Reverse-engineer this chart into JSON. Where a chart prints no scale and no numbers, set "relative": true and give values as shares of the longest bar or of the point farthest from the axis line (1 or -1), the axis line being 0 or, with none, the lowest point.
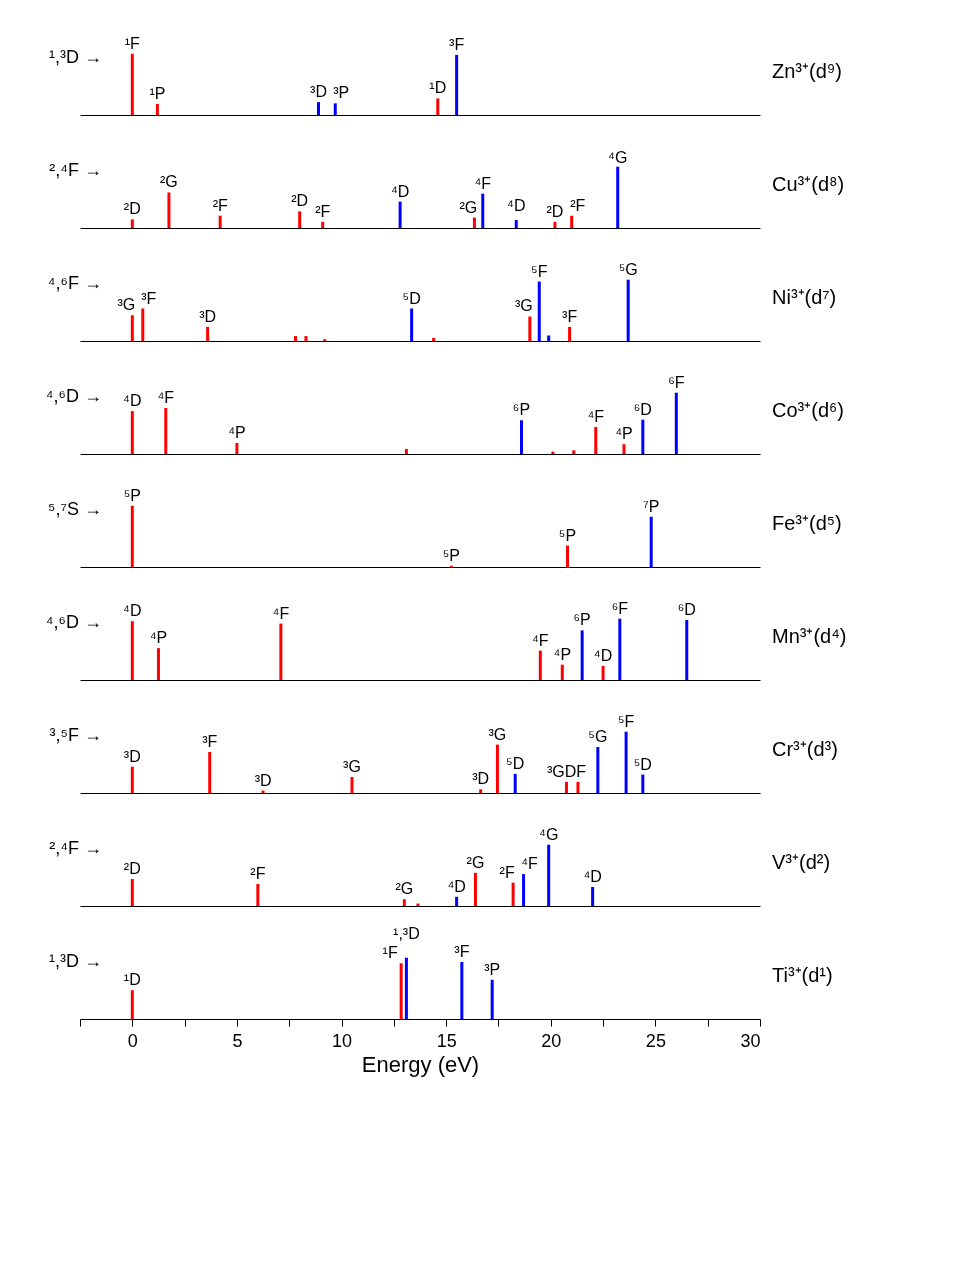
{
  "chart_data": [
    {
      "type": "bar",
      "relative": true,
      "xlim": [
        -2.5,
        30
      ],
      "tick_labels": false,
      "annotations": [
        "¹,³D →",
        "Zn³⁺(d⁹)",
        {
          "text": "¹F",
          "x": 0,
          "y": 1.0
        },
        {
          "text": "¹P",
          "x": 1.2,
          "y": 0.18
        },
        {
          "text": "³D",
          "x": 8.9,
          "y": 0.21
        },
        {
          "text": "³P",
          "x": 9.7,
          "y": 0.19
        },
        {
          "text": "¹D",
          "x": 14.6,
          "y": 0.27
        },
        {
          "text": "³F",
          "x": 15.5,
          "y": 0.98
        }
      ],
      "series": [
        {
          "color": "#ff0000",
          "x": [
            0,
            1.2,
            14.6
          ],
          "values": [
            1.0,
            0.18,
            0.27
          ]
        },
        {
          "color": "#0000ff",
          "x": [
            8.9,
            9.7,
            15.5
          ],
          "values": [
            0.21,
            0.19,
            0.98
          ]
        }
      ]
    },
    {
      "type": "bar",
      "relative": true,
      "xlim": [
        -2.5,
        30
      ],
      "tick_labels": false,
      "annotations": [
        "²,⁴F →",
        "Cu³⁺(d⁸)",
        {
          "text": "²D",
          "x": 0,
          "y": 0.14
        },
        {
          "text": "²G",
          "x": 1.75,
          "y": 0.58
        },
        {
          "text": "²F",
          "x": 4.2,
          "y": 0.2
        },
        {
          "text": "²D",
          "x": 8.0,
          "y": 0.27
        },
        {
          "text": "²F",
          "x": 9.1,
          "y": 0.1
        },
        {
          "text": "⁴D",
          "x": 12.8,
          "y": 0.43
        },
        {
          "text": "²G",
          "x": 16.35,
          "y": 0.17
        },
        {
          "text": "⁴F",
          "x": 16.75,
          "y": 0.56
        },
        {
          "text": "⁴D",
          "x": 18.35,
          "y": 0.2
        },
        {
          "text": "²D",
          "x": 20.2,
          "y": 0.1
        },
        {
          "text": "²F",
          "x": 21.0,
          "y": 0.2
        },
        {
          "text": "⁴G",
          "x": 23.2,
          "y": 0.75
        }
      ],
      "series": [
        {
          "color": "#ff0000",
          "x": [
            0,
            1.75,
            4.2,
            8.0,
            9.1,
            16.35,
            20.2,
            21.0
          ],
          "values": [
            0.14,
            0.58,
            0.2,
            0.27,
            0.1,
            0.17,
            0.1,
            0.2
          ]
        },
        {
          "color": "#0000ff",
          "x": [
            12.8,
            16.75,
            18.35,
            23.2
          ],
          "values": [
            0.43,
            0.56,
            0.13,
            1.0
          ]
        }
      ]
    },
    {
      "type": "bar",
      "relative": true,
      "xlim": [
        -2.5,
        30
      ],
      "tick_labels": false,
      "annotations": [
        "⁴,⁶F →",
        "Ni³⁺(d⁷)",
        {
          "text": "³G",
          "x": 0,
          "y": 0.42
        },
        {
          "text": "³F",
          "x": 0.5,
          "y": 0.53
        },
        {
          "text": "³D",
          "x": 3.6,
          "y": 0.23
        },
        {
          "text": "⁵D",
          "x": 13.35,
          "y": 0.53
        },
        {
          "text": "³G",
          "x": 19.0,
          "y": 0.4
        },
        {
          "text": "⁵F",
          "x": 19.45,
          "y": 0.97
        },
        {
          "text": "³F",
          "x": 20.9,
          "y": 0.23
        },
        {
          "text": "⁵G",
          "x": 23.7,
          "y": 1.0
        }
      ],
      "series": [
        {
          "color": "#ff0000",
          "x": [
            0,
            0.5,
            3.6,
            7.8,
            8.3,
            9.2,
            14.4,
            19.0,
            20.9
          ],
          "values": [
            0.42,
            0.53,
            0.23,
            0.08,
            0.08,
            0.03,
            0.05,
            0.4,
            0.23
          ]
        },
        {
          "color": "#0000ff",
          "x": [
            13.35,
            19.45,
            19.9,
            23.7
          ],
          "values": [
            0.53,
            0.97,
            0.09,
            1.0
          ]
        }
      ]
    },
    {
      "type": "bar",
      "relative": true,
      "xlim": [
        -2.5,
        30
      ],
      "tick_labels": false,
      "annotations": [
        "⁴,⁶D →",
        "Co³⁺(d⁶)",
        {
          "text": "⁴D",
          "x": 0,
          "y": 0.7
        },
        {
          "text": "⁴F",
          "x": 1.6,
          "y": 0.75
        },
        {
          "text": "⁴P",
          "x": 5.0,
          "y": 0.18
        },
        {
          "text": "⁶P",
          "x": 18.6,
          "y": 0.55
        },
        {
          "text": "⁴F",
          "x": 22.15,
          "y": 0.44
        },
        {
          "text": "⁴P",
          "x": 23.5,
          "y": 0.16
        },
        {
          "text": "⁶D",
          "x": 24.4,
          "y": 0.56
        },
        {
          "text": "⁶F",
          "x": 26.0,
          "y": 1.0
        }
      ],
      "series": [
        {
          "color": "#ff0000",
          "x": [
            0,
            1.6,
            5.0,
            13.1,
            20.1,
            21.1,
            22.15,
            23.5
          ],
          "values": [
            0.7,
            0.75,
            0.18,
            0.08,
            0.04,
            0.06,
            0.44,
            0.16
          ]
        },
        {
          "color": "#0000ff",
          "x": [
            18.6,
            24.4,
            26.0
          ],
          "values": [
            0.55,
            0.56,
            1.0
          ]
        }
      ]
    },
    {
      "type": "bar",
      "relative": true,
      "xlim": [
        -2.5,
        30
      ],
      "tick_labels": false,
      "annotations": [
        "⁵,⁷S →",
        "Fe³⁺(d⁵)",
        {
          "text": "⁵P",
          "x": 0,
          "y": 1.0
        },
        {
          "text": "⁵P",
          "x": 15.25,
          "y": 0.02
        },
        {
          "text": "⁵P",
          "x": 20.8,
          "y": 0.35
        },
        {
          "text": "⁷P",
          "x": 24.8,
          "y": 0.82
        }
      ],
      "series": [
        {
          "color": "#ff0000",
          "x": [
            0,
            15.25,
            20.8
          ],
          "values": [
            1.0,
            0.02,
            0.35
          ]
        },
        {
          "color": "#0000ff",
          "x": [
            24.8
          ],
          "values": [
            0.82
          ]
        }
      ]
    },
    {
      "type": "bar",
      "relative": true,
      "xlim": [
        -2.5,
        30
      ],
      "tick_labels": false,
      "annotations": [
        "⁴,⁶D →",
        "Mn³⁺(d⁴)",
        {
          "text": "⁴D",
          "x": 0,
          "y": 0.96
        },
        {
          "text": "⁴P",
          "x": 1.25,
          "y": 0.52
        },
        {
          "text": "⁴F",
          "x": 7.1,
          "y": 0.92
        },
        {
          "text": "⁴F",
          "x": 19.5,
          "y": 0.48
        },
        {
          "text": "⁴P",
          "x": 20.55,
          "y": 0.25
        },
        {
          "text": "⁶P",
          "x": 21.5,
          "y": 0.81
        },
        {
          "text": "⁴D",
          "x": 22.5,
          "y": 0.23
        },
        {
          "text": "⁶F",
          "x": 23.3,
          "y": 1.0
        },
        {
          "text": "⁶D",
          "x": 26.5,
          "y": 0.98
        }
      ],
      "series": [
        {
          "color": "#ff0000",
          "x": [
            0,
            1.25,
            7.1,
            19.5,
            20.55,
            22.5
          ],
          "values": [
            0.96,
            0.52,
            0.92,
            0.48,
            0.25,
            0.23
          ]
        },
        {
          "color": "#0000ff",
          "x": [
            21.5,
            23.3,
            26.5
          ],
          "values": [
            0.81,
            1.0,
            0.98
          ]
        }
      ]
    },
    {
      "type": "bar",
      "relative": true,
      "xlim": [
        -2.5,
        30
      ],
      "tick_labels": false,
      "annotations": [
        "³,⁵F →",
        "Cr³⁺(d³)",
        {
          "text": "³D",
          "x": 0,
          "y": 0.43
        },
        {
          "text": "³F",
          "x": 3.7,
          "y": 0.67
        },
        {
          "text": "³D",
          "x": 6.25,
          "y": 0.04
        },
        {
          "text": "³G",
          "x": 10.5,
          "y": 0.26
        },
        {
          "text": "³D",
          "x": 16.65,
          "y": 0.06
        },
        {
          "text": "³G",
          "x": 17.45,
          "y": 0.79
        },
        {
          "text": "⁵D",
          "x": 18.3,
          "y": 0.31
        },
        {
          "text": "³GDF",
          "x": 20.75,
          "y": 0.18
        },
        {
          "text": "⁵G",
          "x": 22.25,
          "y": 0.75
        },
        {
          "text": "⁵F",
          "x": 23.6,
          "y": 1.0
        },
        {
          "text": "⁵D",
          "x": 24.4,
          "y": 0.3
        }
      ],
      "series": [
        {
          "color": "#ff0000",
          "x": [
            0,
            3.7,
            6.25,
            10.5,
            16.65,
            17.45,
            20.75,
            21.3
          ],
          "values": [
            0.43,
            0.67,
            0.04,
            0.26,
            0.06,
            0.79,
            0.18,
            0.18
          ]
        },
        {
          "color": "#0000ff",
          "x": [
            18.3,
            22.25,
            23.6,
            24.4
          ],
          "values": [
            0.31,
            0.75,
            1.0,
            0.3
          ]
        }
      ]
    },
    {
      "type": "bar",
      "relative": true,
      "xlim": [
        -2.5,
        30
      ],
      "tick_labels": false,
      "annotations": [
        "²,⁴F →",
        "V³⁺(d²)",
        {
          "text": "²D",
          "x": 0,
          "y": 0.44
        },
        {
          "text": "²F",
          "x": 6.0,
          "y": 0.36
        },
        {
          "text": "²G",
          "x": 13.0,
          "y": 0.11
        },
        {
          "text": "⁴D",
          "x": 15.5,
          "y": 0.15
        },
        {
          "text": "²G",
          "x": 16.4,
          "y": 0.54
        },
        {
          "text": "²F",
          "x": 18.2,
          "y": 0.38
        },
        {
          "text": "⁴F",
          "x": 18.7,
          "y": 0.52
        },
        {
          "text": "⁴G",
          "x": 19.9,
          "y": 1.0
        },
        {
          "text": "⁴D",
          "x": 22.0,
          "y": 0.31
        }
      ],
      "series": [
        {
          "color": "#ff0000",
          "x": [
            0,
            6.0,
            13.0,
            13.65,
            16.4,
            18.2
          ],
          "values": [
            0.44,
            0.36,
            0.11,
            0.04,
            0.54,
            0.38
          ]
        },
        {
          "color": "#0000ff",
          "x": [
            15.5,
            18.7,
            19.9,
            22.0
          ],
          "values": [
            0.15,
            0.52,
            1.0,
            0.31
          ]
        }
      ]
    },
    {
      "type": "bar",
      "relative": true,
      "xlim": [
        -2.5,
        30
      ],
      "tick_labels": "x",
      "xlabel": "Energy (eV)",
      "xticks": [
        {
          "value": -2.5,
          "label": null
        },
        0,
        {
          "value": 2.5,
          "label": null
        },
        5,
        {
          "value": 7.5,
          "label": null
        },
        10,
        {
          "value": 12.5,
          "label": null
        },
        15,
        {
          "value": 17.5,
          "label": null
        },
        20,
        {
          "value": 22.5,
          "label": null
        },
        25,
        {
          "value": 27.5,
          "label": null
        },
        30
      ],
      "annotations": [
        "¹,³D →",
        "Ti³⁺(d¹)",
        {
          "text": "¹D",
          "x": 0,
          "y": 0.47
        },
        {
          "text": "¹F",
          "x": 12.85,
          "y": 0.91
        },
        {
          "text": "¹,³D",
          "x": 13.1,
          "y": 1.0
        },
        {
          "text": "³F",
          "x": 15.75,
          "y": 0.93
        },
        {
          "text": "³P",
          "x": 17.2,
          "y": 0.64
        }
      ],
      "series": [
        {
          "color": "#ff0000",
          "x": [
            0,
            12.85
          ],
          "values": [
            0.47,
            0.91
          ]
        },
        {
          "color": "#0000ff",
          "x": [
            13.1,
            15.75,
            17.2
          ],
          "values": [
            1.0,
            0.93,
            0.64
          ]
        }
      ]
    }
  ]
}
